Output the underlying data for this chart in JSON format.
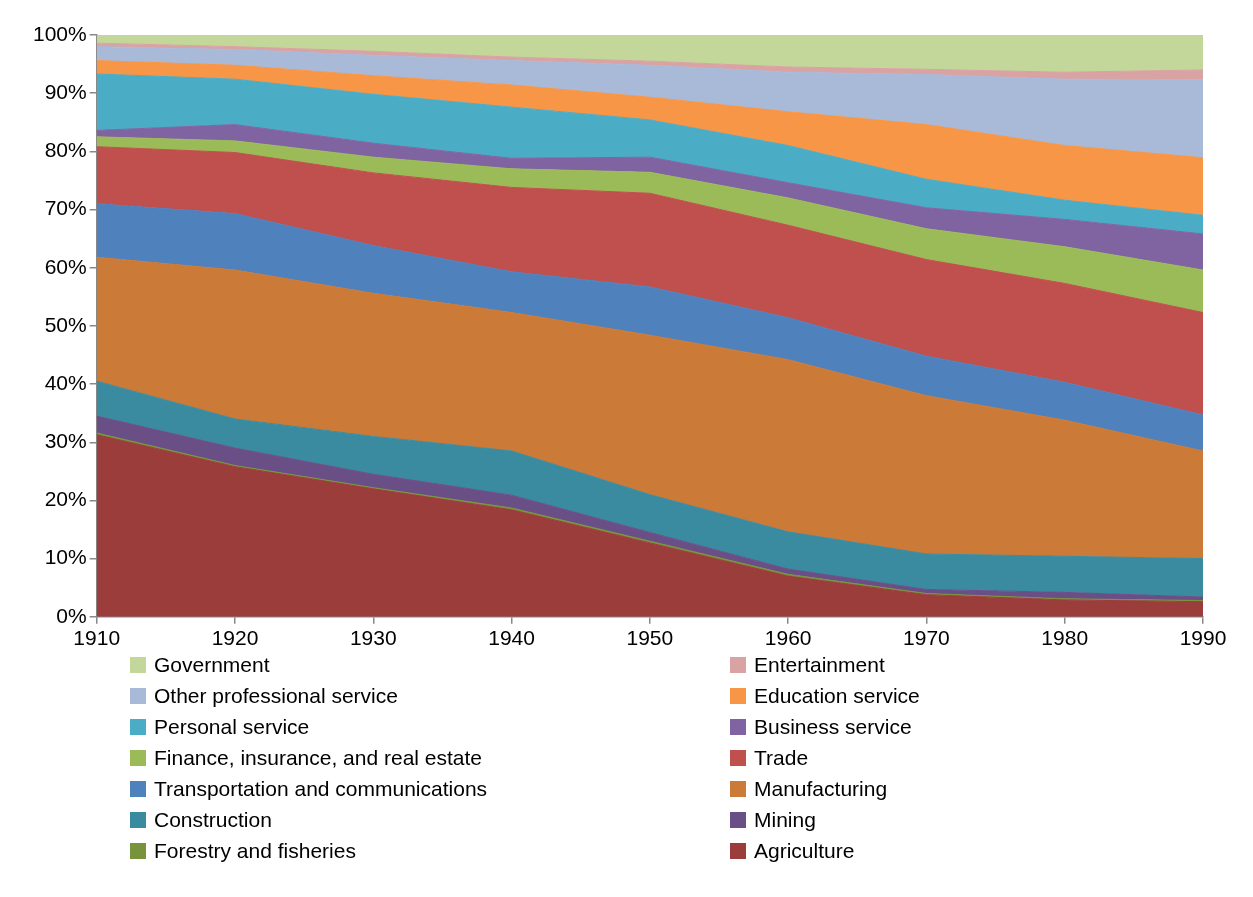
{
  "chart_data": {
    "type": "area",
    "stacked": true,
    "x": [
      1910,
      1920,
      1930,
      1940,
      1950,
      1960,
      1970,
      1980,
      1990
    ],
    "xlim": [
      1910,
      1990
    ],
    "xticks": [
      1910,
      1920,
      1930,
      1940,
      1950,
      1960,
      1970,
      1980,
      1990
    ],
    "ylim": [
      0,
      100
    ],
    "yticks": [
      {
        "value": 0,
        "label": "0%"
      },
      {
        "value": 10,
        "label": "10%"
      },
      {
        "value": 20,
        "label": "20%"
      },
      {
        "value": 30,
        "label": "30%"
      },
      {
        "value": 40,
        "label": "40%"
      },
      {
        "value": 50,
        "label": "50%"
      },
      {
        "value": 60,
        "label": "60%"
      },
      {
        "value": 70,
        "label": "70%"
      },
      {
        "value": 80,
        "label": "80%"
      },
      {
        "value": 90,
        "label": "90%"
      },
      {
        "value": 100,
        "label": "100%"
      }
    ],
    "grid": false,
    "legend": "bottom",
    "series": [
      {
        "name": "Agriculture",
        "color": "#9b3d3b",
        "values": [
          31.3,
          25.8,
          22.0,
          18.4,
          12.7,
          7.0,
          3.8,
          2.9,
          2.6
        ]
      },
      {
        "name": "Forestry and fisheries",
        "color": "#77933c",
        "values": [
          0.3,
          0.2,
          0.2,
          0.3,
          0.3,
          0.3,
          0.2,
          0.2,
          0.2
        ]
      },
      {
        "name": "Mining",
        "color": "#6a4f87",
        "values": [
          2.9,
          3.0,
          2.3,
          2.2,
          1.5,
          0.9,
          0.7,
          1.1,
          0.6
        ]
      },
      {
        "name": "Construction",
        "color": "#3b8ba0",
        "values": [
          6.0,
          5.0,
          6.5,
          7.6,
          6.5,
          6.4,
          6.1,
          6.2,
          6.6
        ]
      },
      {
        "name": "Manufacturing",
        "color": "#cb7a37",
        "values": [
          21.3,
          25.6,
          24.6,
          23.8,
          27.4,
          29.6,
          27.2,
          23.4,
          18.5
        ]
      },
      {
        "name": "Transportation and communications",
        "color": "#4f81bd",
        "values": [
          9.2,
          9.7,
          8.2,
          7.0,
          8.3,
          7.2,
          6.8,
          6.5,
          6.2
        ]
      },
      {
        "name": "Trade",
        "color": "#c0504d",
        "values": [
          9.8,
          10.5,
          12.5,
          14.5,
          16.1,
          15.9,
          16.6,
          17.0,
          17.6
        ]
      },
      {
        "name": "Finance, insurance, and real estate",
        "color": "#9bbb59",
        "values": [
          1.7,
          2.0,
          2.7,
          3.2,
          3.6,
          4.7,
          5.3,
          6.3,
          7.3
        ]
      },
      {
        "name": "Business service",
        "color": "#8064a2",
        "values": [
          1.1,
          2.8,
          2.4,
          1.8,
          2.6,
          2.6,
          3.6,
          4.7,
          6.2
        ]
      },
      {
        "name": "Personal service",
        "color": "#4bacc6",
        "values": [
          9.7,
          7.8,
          8.4,
          8.8,
          6.4,
          6.4,
          4.9,
          3.3,
          3.2
        ]
      },
      {
        "name": "Education service",
        "color": "#f79646",
        "values": [
          2.3,
          2.4,
          3.2,
          3.8,
          3.9,
          5.8,
          9.4,
          9.4,
          9.9
        ]
      },
      {
        "name": "Other professional service",
        "color": "#a9b9d8",
        "values": [
          2.4,
          2.7,
          3.5,
          4.2,
          5.5,
          6.8,
          8.6,
          11.4,
          13.4
        ]
      },
      {
        "name": "Entertainment",
        "color": "#d9a3a3",
        "values": [
          0.6,
          0.5,
          0.7,
          0.6,
          0.7,
          0.9,
          0.9,
          1.2,
          1.7
        ]
      },
      {
        "name": "Government",
        "color": "#c4d79b",
        "values": [
          1.4,
          2.0,
          2.8,
          3.8,
          4.5,
          5.5,
          5.9,
          6.4,
          6.0
        ]
      }
    ]
  }
}
